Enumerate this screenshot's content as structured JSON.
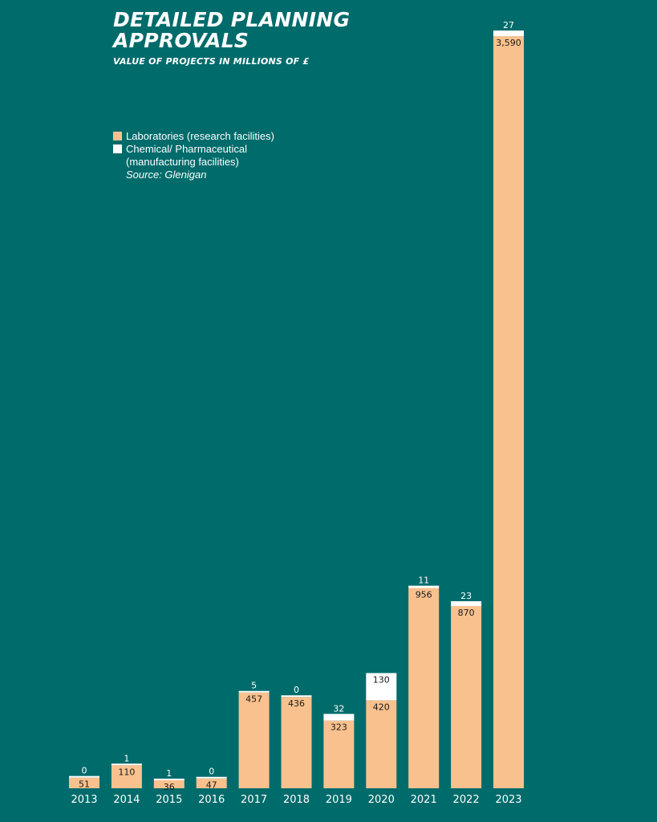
{
  "header": {
    "title": "DETAILED PLANNING APPROVALS",
    "subtitle": "VALUE OF PROJECTS IN MILLIONS OF £"
  },
  "legend": {
    "items": [
      {
        "label": "Laboratories (research facilities)",
        "color": "#f9c18d"
      },
      {
        "label": "Chemical/ Pharmaceutical (manufacturing facilities)",
        "color": "#ffffff"
      }
    ],
    "source": "Source: Glenigan"
  },
  "colors": {
    "background": "#006b6b",
    "labs": "#f9c18d",
    "chem": "#ffffff"
  },
  "chart_data": {
    "type": "bar",
    "stacked": true,
    "title": "DETAILED PLANNING APPROVALS",
    "subtitle": "VALUE OF PROJECTS IN MILLIONS OF £",
    "categories": [
      "2013",
      "2014",
      "2015",
      "2016",
      "2017",
      "2018",
      "2019",
      "2020",
      "2021",
      "2022",
      "2023"
    ],
    "series": [
      {
        "name": "Laboratories (research facilities)",
        "values": [
          51,
          110,
          36,
          47,
          457,
          436,
          323,
          420,
          956,
          870,
          3590
        ],
        "labels": [
          "51",
          "110",
          "36",
          "47",
          "457",
          "436",
          "323",
          "420",
          "956",
          "870",
          "3,590"
        ]
      },
      {
        "name": "Chemical/ Pharmaceutical (manufacturing facilities)",
        "values": [
          0,
          1,
          1,
          0,
          5,
          0,
          32,
          130,
          11,
          23,
          27
        ],
        "labels": [
          "0",
          "1",
          "1",
          "0",
          "5",
          "0",
          "32",
          "130",
          "11",
          "23",
          "27"
        ]
      }
    ],
    "ylim": [
      0,
      3617
    ],
    "grid": false,
    "legend_position": "top-left",
    "source": "Source: Glenigan"
  }
}
